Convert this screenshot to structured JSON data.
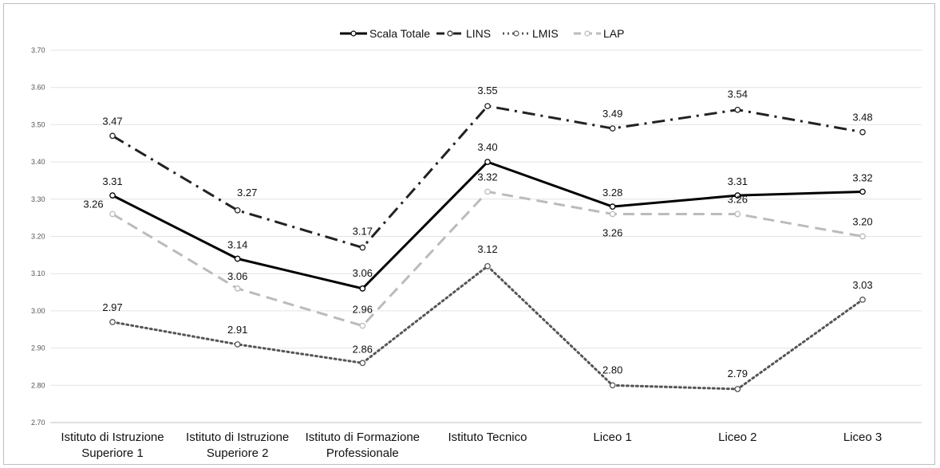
{
  "chart_data": {
    "type": "line",
    "categories": [
      [
        "Istituto di Istruzione",
        "Superiore 1"
      ],
      [
        "Istituto di Istruzione",
        "Superiore 2"
      ],
      [
        "Istituto di Formazione",
        "Professionale"
      ],
      [
        "Istituto Tecnico"
      ],
      [
        "Liceo 1"
      ],
      [
        "Liceo 2"
      ],
      [
        "Liceo 3"
      ]
    ],
    "ylim": [
      2.7,
      3.7
    ],
    "yticks": [
      "2.70",
      "2.80",
      "2.90",
      "3.00",
      "3.10",
      "3.20",
      "3.30",
      "3.40",
      "3.50",
      "3.60",
      "3.70"
    ],
    "grid": true,
    "legend_position": "top-center",
    "series": [
      {
        "name": "Scala Totale",
        "values": [
          3.31,
          3.14,
          3.06,
          3.4,
          3.28,
          3.31,
          3.32
        ],
        "labels": [
          "3.31",
          "3.14",
          "3.06",
          "3.40",
          "3.28",
          "3.31",
          "3.32"
        ],
        "color": "#000000",
        "style": "solid"
      },
      {
        "name": "LINS",
        "values": [
          3.47,
          3.27,
          3.17,
          3.55,
          3.49,
          3.54,
          3.48
        ],
        "labels": [
          "3.47",
          "3.27",
          "3.17",
          "3.55",
          "3.49",
          "3.54",
          "3.48"
        ],
        "color": "#222222",
        "style": "dashdot"
      },
      {
        "name": "LMIS",
        "values": [
          2.97,
          2.91,
          2.86,
          3.12,
          2.8,
          2.79,
          3.03
        ],
        "labels": [
          "2.97",
          "2.91",
          "2.86",
          "3.12",
          "2.80",
          "2.79",
          "3.03"
        ],
        "color": "#555555",
        "style": "dotted"
      },
      {
        "name": "LAP",
        "values": [
          3.26,
          3.06,
          2.96,
          3.32,
          3.26,
          3.26,
          3.2
        ],
        "labels": [
          "3.26",
          "3.06",
          "2.96",
          "3.32",
          "3.26",
          "3.26",
          "3.20"
        ],
        "color": "#bbbbbb",
        "style": "dashed"
      }
    ]
  }
}
